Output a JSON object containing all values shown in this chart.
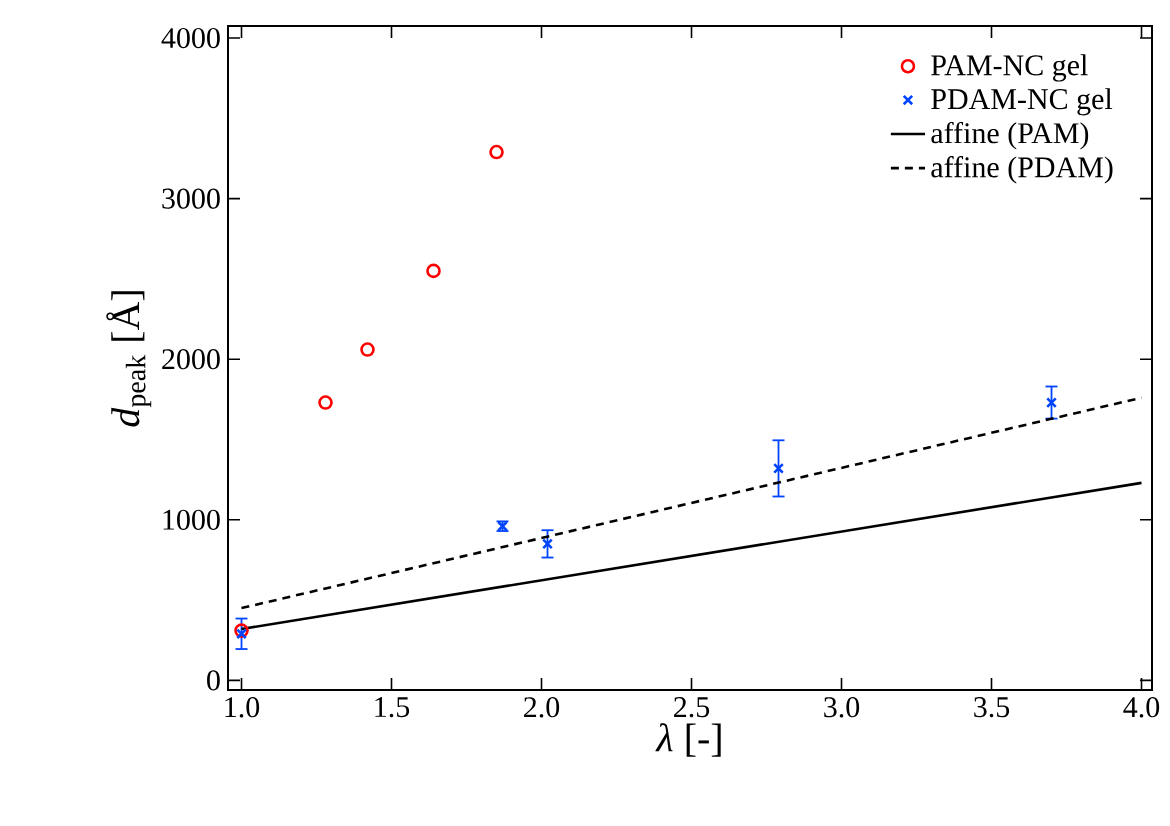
{
  "chart_data": {
    "type": "scatter",
    "xlabel": "*λ* [-]",
    "ylabel": "*d*$_{peak}$ [Å]",
    "xlim": [
      0.955,
      4.035
    ],
    "ylim": [
      -60,
      4075
    ],
    "xticks": [
      {
        "value": 1,
        "label": "1.0"
      },
      {
        "value": 1.5,
        "label": "1.5"
      },
      {
        "value": 2,
        "label": "2.0"
      },
      {
        "value": 2.5,
        "label": "2.5"
      },
      {
        "value": 3,
        "label": "3.0"
      },
      {
        "value": 3.5,
        "label": "3.5"
      },
      {
        "value": 4,
        "label": "4.0"
      }
    ],
    "yticks": [
      0,
      1000,
      2000,
      3000,
      4000
    ],
    "legend": "top right",
    "grid": false,
    "series": [
      {
        "name": "PAM-NC gel",
        "marker": "circle",
        "color": "#ff0000",
        "x": [
          1.0,
          1.28,
          1.42,
          1.64,
          1.85
        ],
        "values": [
          310,
          1730,
          2060,
          2550,
          3290
        ]
      },
      {
        "name": "PDAM-NC gel",
        "marker": "cross",
        "color": "#0044ff",
        "x": [
          1.0,
          1.87,
          2.02,
          2.79,
          3.7
        ],
        "values": [
          290,
          960,
          850,
          1320,
          1730
        ],
        "errors": [
          95,
          30,
          85,
          175,
          100
        ]
      },
      {
        "name": "affine (PAM)",
        "type": "line",
        "line_style": "solid",
        "marker": "none",
        "color": "#000000",
        "x": [
          1.0,
          4.0
        ],
        "values": [
          320,
          1230
        ]
      },
      {
        "name": "affine (PDAM)",
        "type": "line",
        "line_style": "dashed",
        "marker": "none",
        "color": "#000000",
        "x": [
          1.0,
          4.0
        ],
        "values": [
          450,
          1760
        ]
      }
    ]
  }
}
